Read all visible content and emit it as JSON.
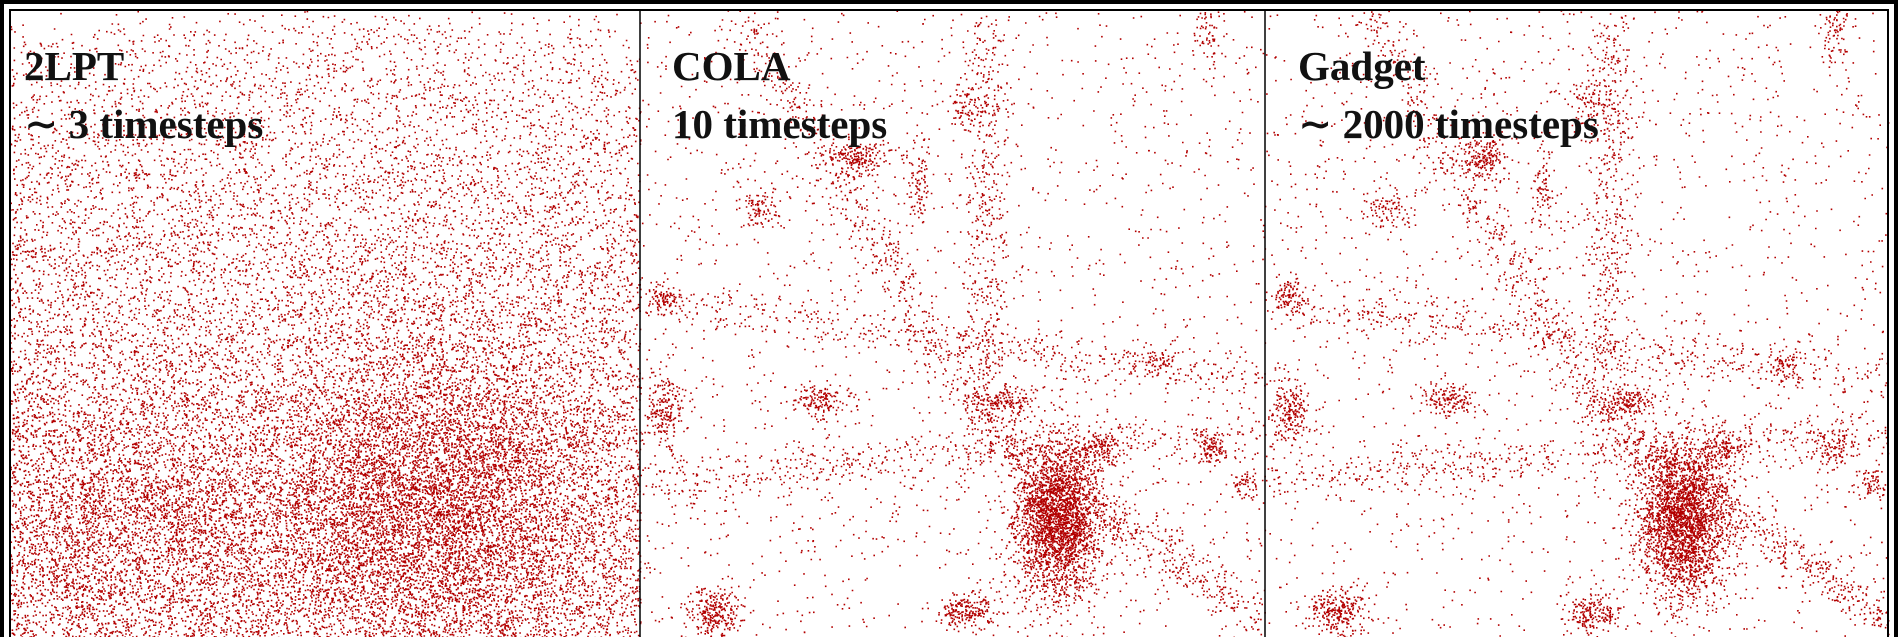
{
  "panels": [
    {
      "title": "2LPT",
      "subtitle": "∼ 3 timesteps"
    },
    {
      "title": "COLA",
      "subtitle": "10 timesteps"
    },
    {
      "title": "Gadget",
      "subtitle": "∼ 2000 timesteps"
    }
  ]
}
